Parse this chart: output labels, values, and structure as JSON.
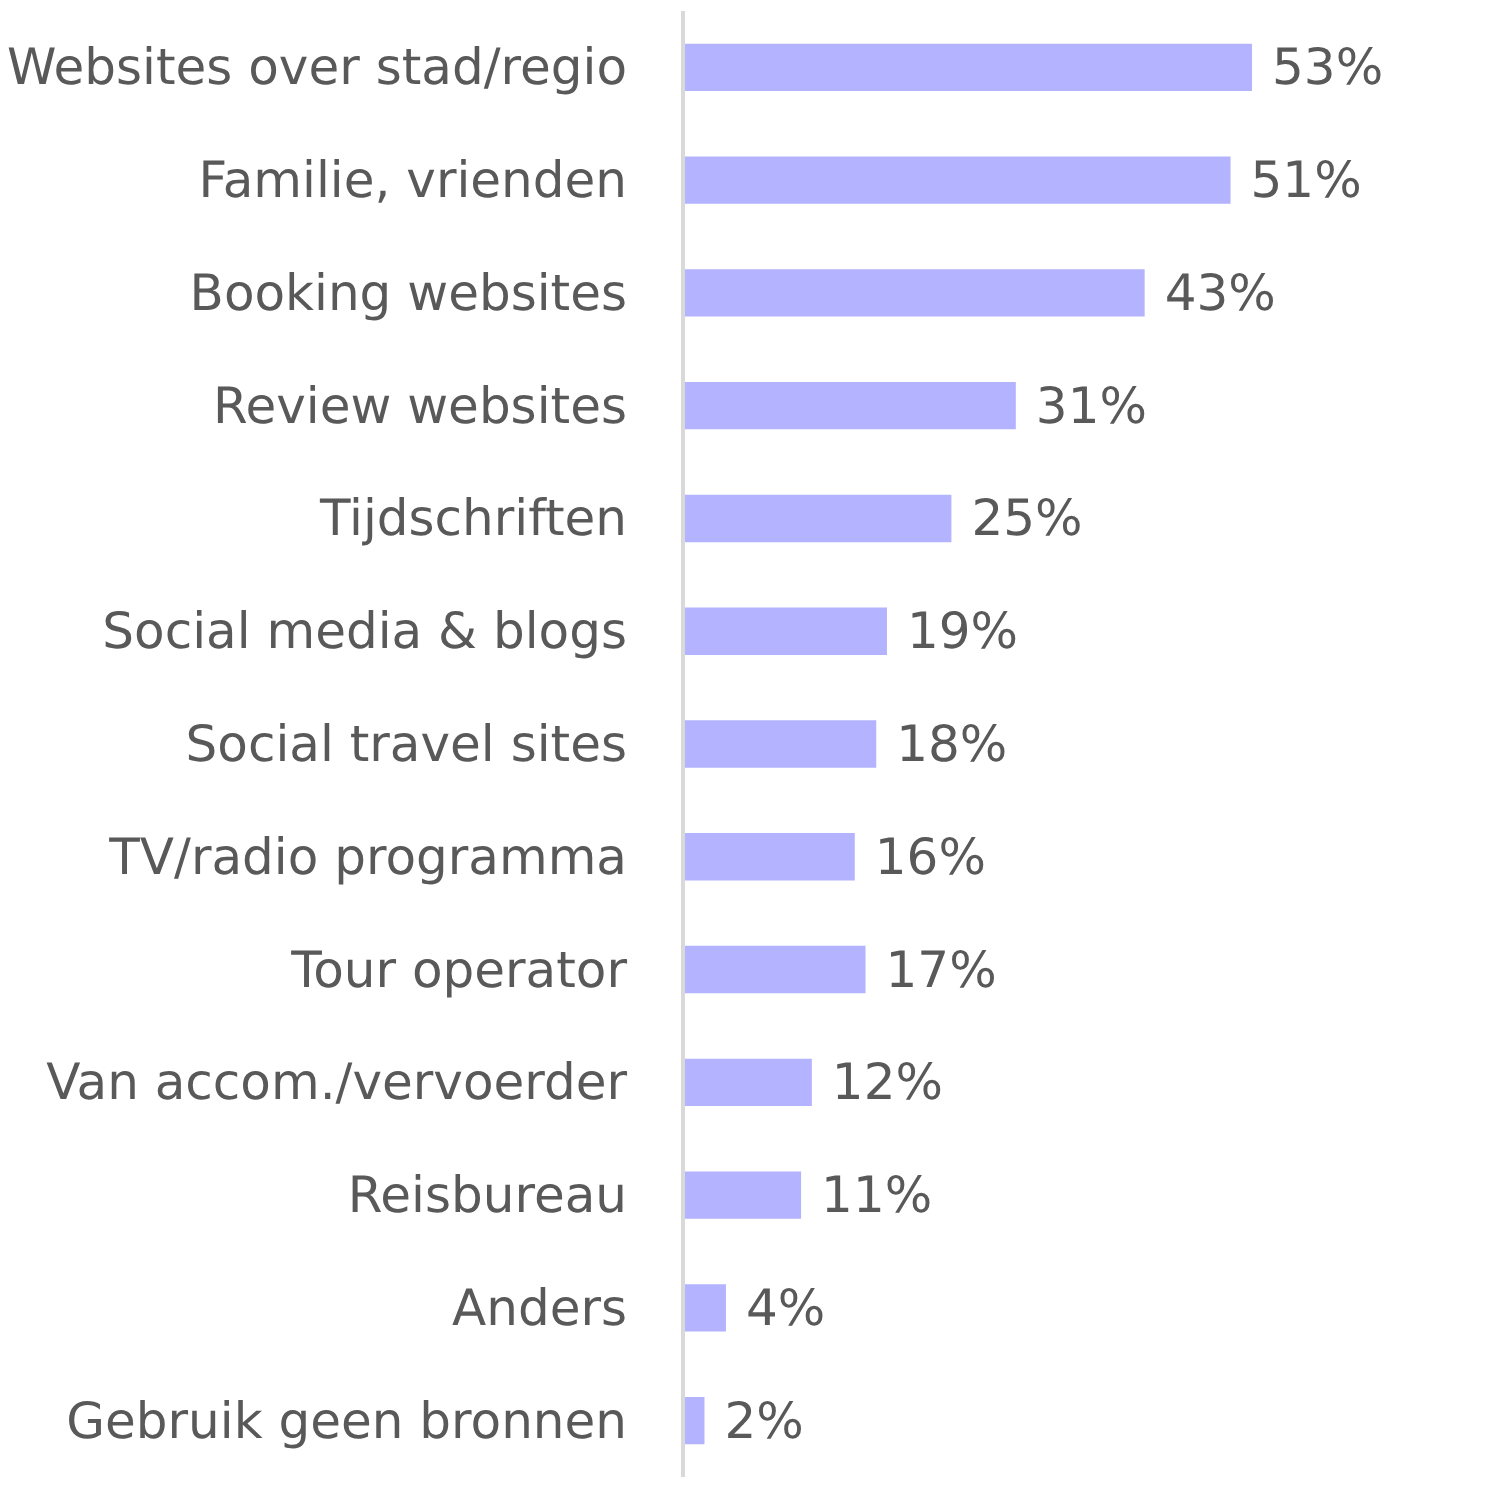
{
  "chart_data": {
    "type": "bar",
    "orientation": "horizontal",
    "tick_labels": "y",
    "grid": false,
    "categories": [
      "Websites over stad/regio",
      "Familie, vrienden",
      "Booking websites",
      "Review websites",
      "Tijdschriften",
      "Social media & blogs",
      "Social travel sites",
      "TV/radio programma",
      "Tour operator",
      "Van accom./vervoerder",
      "Reisbureau",
      "Anders",
      "Gebruik geen bronnen"
    ],
    "values": [
      53,
      51,
      43,
      31,
      25,
      19,
      18,
      16,
      17,
      12,
      11,
      4,
      2
    ],
    "value_labels": [
      "53%",
      "51%",
      "43%",
      "31%",
      "25%",
      "19%",
      "18%",
      "16%",
      "17%",
      "12%",
      "11%",
      "4%",
      "2%"
    ],
    "color": "#b3b3ff"
  }
}
